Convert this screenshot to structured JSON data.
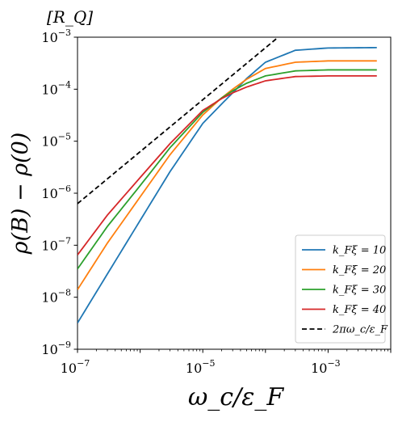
{
  "chart_data": {
    "type": "line",
    "title": "",
    "unit_label": "[R_Q]",
    "xlabel": "ω_c/ε_F",
    "ylabel": "ρ(B) − ρ(0)",
    "xscale": "log",
    "yscale": "log",
    "xlim": [
      1e-07,
      0.01
    ],
    "ylim": [
      1e-09,
      0.001
    ],
    "x_tick_labels": [
      {
        "value": 1e-07,
        "label": "10",
        "exp": "−7"
      },
      {
        "value": 1e-05,
        "label": "10",
        "exp": "−5"
      },
      {
        "value": 0.001,
        "label": "10",
        "exp": "−3"
      }
    ],
    "y_tick_labels": [
      {
        "value": 1e-09,
        "label": "10",
        "exp": "−9"
      },
      {
        "value": 1e-08,
        "label": "10",
        "exp": "−8"
      },
      {
        "value": 1e-07,
        "label": "10",
        "exp": "−7"
      },
      {
        "value": 1e-06,
        "label": "10",
        "exp": "−6"
      },
      {
        "value": 1e-05,
        "label": "10",
        "exp": "−5"
      },
      {
        "value": 0.0001,
        "label": "10",
        "exp": "−4"
      },
      {
        "value": 0.001,
        "label": "10",
        "exp": "−3"
      }
    ],
    "grid": false,
    "legend_position": "bottom-right",
    "series": [
      {
        "name": "k_Fξ = 10",
        "color": "#1f77b4",
        "style": "solid",
        "x": [
          1e-07,
          3e-07,
          1e-06,
          3e-06,
          1e-05,
          2e-05,
          3e-05,
          5e-05,
          0.0001,
          0.0003,
          0.001,
          0.006
        ],
        "y": [
          3.2e-09,
          2.8e-08,
          3e-07,
          2.6e-06,
          2.2e-05,
          5.2e-05,
          8.5e-05,
          0.00016,
          0.00033,
          0.00056,
          0.00062,
          0.00063
        ]
      },
      {
        "name": "k_Fξ = 20",
        "color": "#ff7f0e",
        "style": "solid",
        "x": [
          1e-07,
          3e-07,
          1e-06,
          3e-06,
          1e-05,
          2e-05,
          3e-05,
          5e-05,
          0.0001,
          0.0003,
          0.001,
          0.006
        ],
        "y": [
          1.4e-08,
          1.1e-07,
          8.5e-07,
          5.5e-06,
          3.2e-05,
          6.8e-05,
          0.0001,
          0.000155,
          0.00025,
          0.00033,
          0.00035,
          0.00035
        ]
      },
      {
        "name": "k_Fξ = 30",
        "color": "#2ca02c",
        "style": "solid",
        "x": [
          1e-07,
          3e-07,
          1e-06,
          3e-06,
          1e-05,
          2e-05,
          3e-05,
          5e-05,
          0.0001,
          0.0003,
          0.001,
          0.006
        ],
        "y": [
          3.5e-08,
          2.3e-07,
          1.4e-06,
          7.5e-06,
          3.6e-05,
          6.8e-05,
          9.3e-05,
          0.00013,
          0.00018,
          0.000225,
          0.000235,
          0.000235
        ]
      },
      {
        "name": "k_Fξ = 40",
        "color": "#d62728",
        "style": "solid",
        "x": [
          1e-07,
          3e-07,
          1e-06,
          3e-06,
          1e-05,
          2e-05,
          3e-05,
          5e-05,
          0.0001,
          0.0003,
          0.001,
          0.006
        ],
        "y": [
          6.5e-08,
          3.8e-07,
          2e-06,
          9e-06,
          3.9e-05,
          6.6e-05,
          8.5e-05,
          0.00011,
          0.000145,
          0.000175,
          0.00018,
          0.00018
        ]
      },
      {
        "name": "2πω_c/ε_F",
        "color": "#000000",
        "style": "dashed",
        "x": [
          1e-07,
          0.00016
        ],
        "y": [
          6.3e-07,
          0.001
        ]
      }
    ]
  }
}
